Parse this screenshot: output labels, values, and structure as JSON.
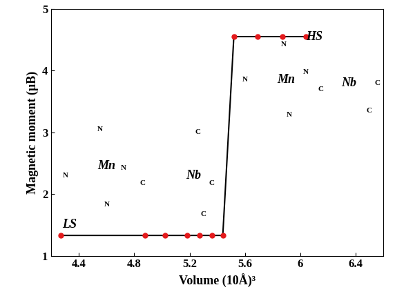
{
  "chart_data": {
    "type": "line",
    "x_label": "Volume (10Å)³",
    "y_label": "Magnetic moment (μB)",
    "x": [
      4.27,
      4.88,
      5.02,
      5.18,
      5.27,
      5.36,
      5.44,
      5.52,
      5.69,
      5.87,
      6.04
    ],
    "values": [
      1.33,
      1.33,
      1.33,
      1.33,
      1.33,
      1.33,
      1.33,
      4.55,
      4.55,
      4.55,
      4.55
    ],
    "color": "#000000",
    "marker_color": "#e41a1c",
    "marker": "o",
    "line_style": "solid",
    "xlim": [
      4.2,
      6.6
    ],
    "ylim": [
      1,
      5
    ],
    "xticks": [
      4.4,
      4.8,
      5.2,
      5.6,
      6,
      6.4
    ],
    "yticks": [
      1,
      2,
      3,
      4,
      5
    ],
    "grid": false,
    "annotations": [
      {
        "text": "LS",
        "x": 4.33,
        "y": 1.5
      },
      {
        "text": "HS",
        "x": 6.1,
        "y": 4.55
      },
      {
        "text": "Mn",
        "x": 4.6,
        "y": 2.45
      },
      {
        "text": "Nb",
        "x": 5.23,
        "y": 2.3
      },
      {
        "text": "N",
        "x": 4.55,
        "y": 3.05
      },
      {
        "text": "N",
        "x": 4.3,
        "y": 2.3
      },
      {
        "text": "N",
        "x": 4.72,
        "y": 2.42
      },
      {
        "text": "N",
        "x": 4.6,
        "y": 1.83
      },
      {
        "text": "C",
        "x": 4.86,
        "y": 2.18
      },
      {
        "text": "C",
        "x": 5.26,
        "y": 3.0
      },
      {
        "text": "C",
        "x": 5.36,
        "y": 2.18
      },
      {
        "text": "C",
        "x": 5.3,
        "y": 1.67
      },
      {
        "text": "Mn",
        "x": 5.9,
        "y": 3.85
      },
      {
        "text": "Nb",
        "x": 6.35,
        "y": 3.8
      },
      {
        "text": "N",
        "x": 5.88,
        "y": 4.42
      },
      {
        "text": "N",
        "x": 5.6,
        "y": 3.85
      },
      {
        "text": "N",
        "x": 6.04,
        "y": 3.98
      },
      {
        "text": "C",
        "x": 6.15,
        "y": 3.7
      },
      {
        "text": "C",
        "x": 6.56,
        "y": 3.8
      },
      {
        "text": "C",
        "x": 6.5,
        "y": 3.35
      },
      {
        "text": "N",
        "x": 5.92,
        "y": 3.28
      }
    ]
  }
}
